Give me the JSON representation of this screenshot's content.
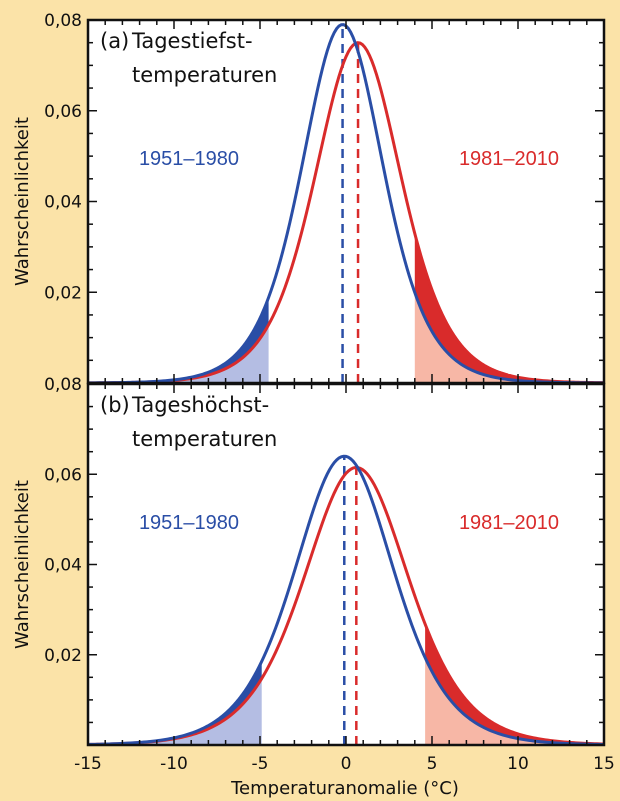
{
  "colors": {
    "background": "#fbe3a8",
    "early": "#2a4ea6",
    "late": "#d92b2b",
    "early_fill": "#b4bde3",
    "late_fill": "#f7b7a6"
  },
  "xlabel": "Temperaturanomalie (°C)",
  "chart_data": [
    {
      "type": "line",
      "panel_label": "(a)",
      "title_line1": "Tagestiefst-",
      "title_line2": "temperaturen",
      "ylabel": "Wahrscheinlichkeit",
      "xlim": [
        -15,
        15
      ],
      "ylim": [
        0,
        0.08
      ],
      "y_ticks": [
        0.02,
        0.04,
        0.06,
        0.08
      ],
      "y_tick_labels": [
        "0,02",
        "0,04",
        "0,06",
        "0,08"
      ],
      "x_ticks": [
        -15,
        -10,
        -5,
        0,
        5,
        10,
        15
      ],
      "series": [
        {
          "name": "1951–1980",
          "peak_x": -0.2,
          "peak_y": 0.079,
          "scale": 3.2,
          "mean_line_x": -0.2,
          "shade_below_x": -4.5
        },
        {
          "name": "1981–2010",
          "peak_x": 0.7,
          "peak_y": 0.075,
          "scale": 3.4,
          "mean_line_x": 0.7,
          "shade_above_x": 4.0
        }
      ]
    },
    {
      "type": "line",
      "panel_label": "(b)",
      "title_line1": "Tageshöchst-",
      "title_line2": "temperaturen",
      "ylabel": "Wahrscheinlichkeit",
      "xlim": [
        -15,
        15
      ],
      "ylim": [
        0,
        0.08
      ],
      "y_ticks": [
        0.02,
        0.04,
        0.06,
        0.08
      ],
      "y_tick_labels": [
        "0,02",
        "0,04",
        "0,06",
        "0,08"
      ],
      "x_ticks": [
        -15,
        -10,
        -5,
        0,
        5,
        10,
        15
      ],
      "x_tick_labels": [
        "-15",
        "-10",
        "-5",
        "0",
        "5",
        "10",
        "15"
      ],
      "series": [
        {
          "name": "1951–1980",
          "peak_x": -0.1,
          "peak_y": 0.064,
          "scale": 3.9,
          "mean_line_x": -0.1,
          "shade_below_x": -4.9
        },
        {
          "name": "1981–2010",
          "peak_x": 0.6,
          "peak_y": 0.0615,
          "scale": 4.1,
          "mean_line_x": 0.6,
          "shade_above_x": 4.6
        }
      ]
    }
  ]
}
